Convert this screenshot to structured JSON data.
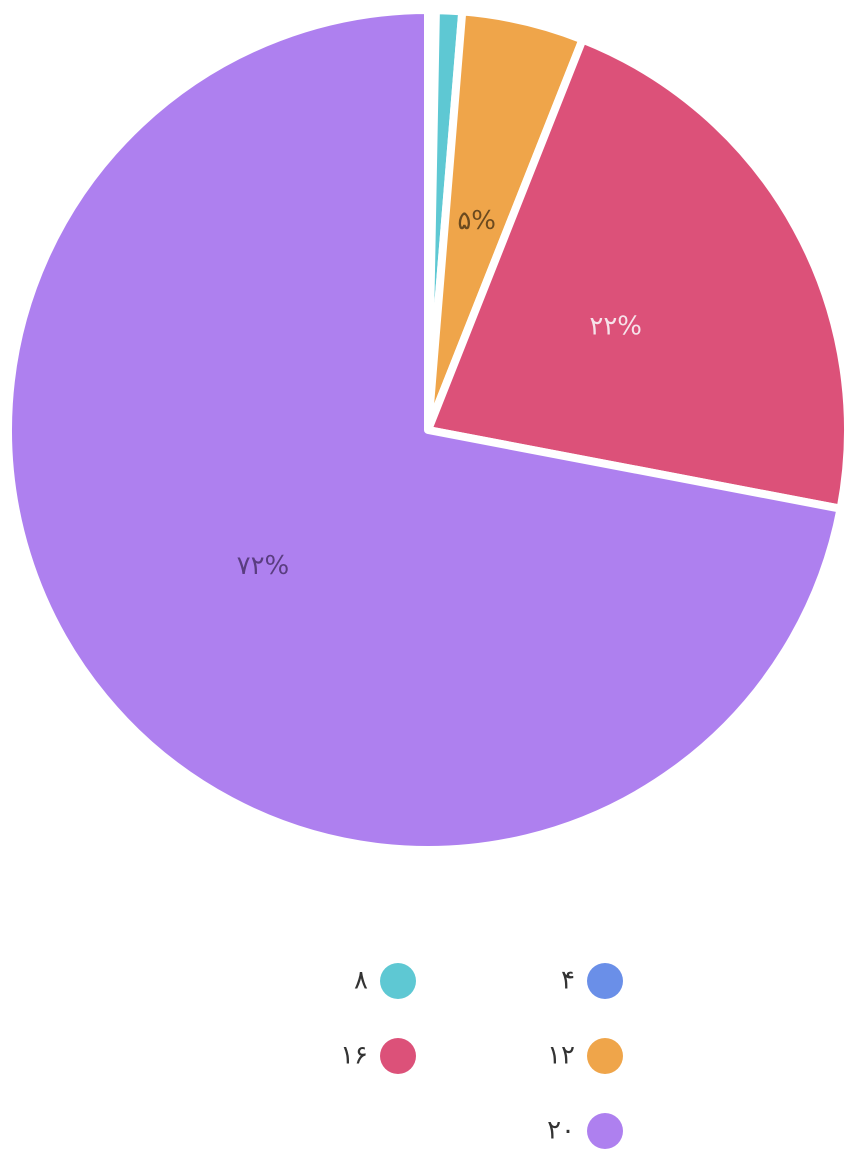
{
  "chart_data": {
    "type": "pie",
    "categories": [
      "۴",
      "۸",
      "۱۲",
      "۱۶",
      "۲۰"
    ],
    "values": [
      0.3,
      1,
      4.7,
      22,
      72
    ],
    "value_labels": [
      null,
      null,
      "۵%",
      "۲۲%",
      "۷۲%"
    ],
    "colors": [
      "#6a8fe8",
      "#5ec8d3",
      "#efa54a",
      "#dc5179",
      "#ae80ef"
    ]
  }
}
